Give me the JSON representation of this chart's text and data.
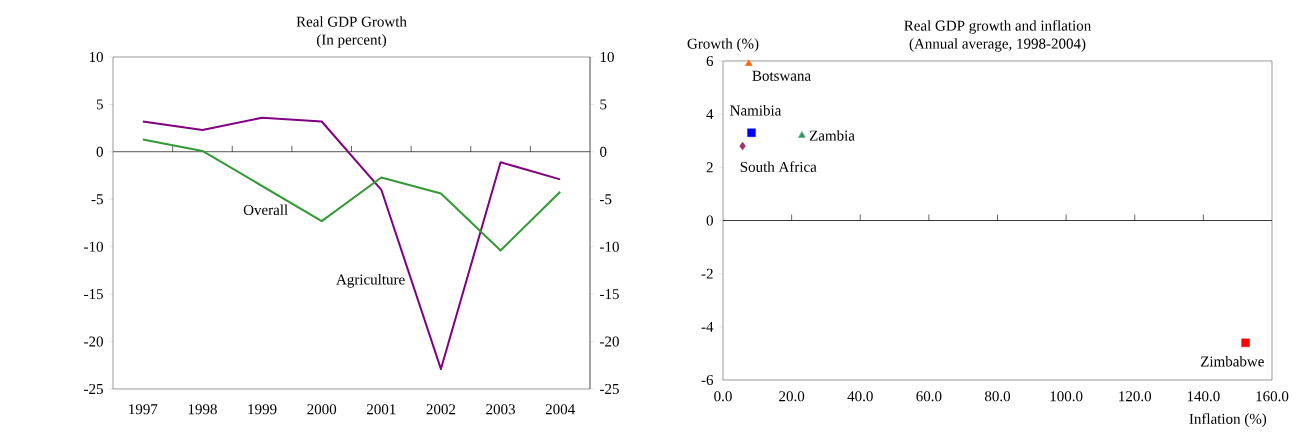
{
  "chart_data": [
    {
      "type": "line",
      "title": "Real GDP Growth",
      "subtitle": "(In percent)",
      "categories": [
        "1997",
        "1998",
        "1999",
        "2000",
        "2001",
        "2002",
        "2003",
        "2004"
      ],
      "series": [
        {
          "name": "Agriculture",
          "color": "#800080",
          "values": [
            3.2,
            2.3,
            3.6,
            3.2,
            -4.0,
            -22.9,
            -1.1,
            -2.9
          ]
        },
        {
          "name": "Overall",
          "color": "#339933",
          "values": [
            1.3,
            0.1,
            -3.6,
            -7.3,
            -2.7,
            -4.4,
            -10.4,
            -4.2
          ]
        }
      ],
      "ylim": [
        -25,
        10
      ],
      "yticks": [
        -25,
        -20,
        -15,
        -10,
        -5,
        0,
        5,
        10
      ],
      "ref_lines": [
        {
          "axis": "y",
          "value": 0
        }
      ],
      "y2lim": [
        -25,
        10
      ],
      "y2ticks": [
        -25,
        -20,
        -15,
        -10,
        -5,
        0,
        5,
        10
      ],
      "grid": false,
      "legend": false,
      "marker": "none",
      "line_style": "solid"
    },
    {
      "type": "scatter",
      "title": "Real GDP growth and inflation",
      "subtitle": "(Annual average, 1998-2004)",
      "xlabel": "Inflation (%)",
      "ylabel": "Growth (%)",
      "series": [
        {
          "name": "Botswana",
          "color": "#ff6600",
          "marker": "triangle",
          "x": [
            7.5
          ],
          "values": [
            5.9
          ]
        },
        {
          "name": "Namibia",
          "color": "#0000ff",
          "marker": "square",
          "x": [
            8.3
          ],
          "values": [
            3.3
          ]
        },
        {
          "name": "Zambia",
          "color": "#339966",
          "marker": "triangle",
          "x": [
            23.0
          ],
          "values": [
            3.2
          ]
        },
        {
          "name": "South Africa",
          "color": "#993366",
          "marker": "diamond",
          "x": [
            5.7
          ],
          "values": [
            2.8
          ]
        },
        {
          "name": "Zimbabwe",
          "color": "#ff0000",
          "marker": "square",
          "x": [
            152.3
          ],
          "values": [
            -4.6
          ]
        }
      ],
      "xlim": [
        0,
        160
      ],
      "xticks": [
        {
          "value": 0,
          "label": "0.0"
        },
        {
          "value": 20,
          "label": "20.0"
        },
        {
          "value": 40,
          "label": "40.0"
        },
        {
          "value": 60,
          "label": "60.0"
        },
        {
          "value": 80,
          "label": "80.0"
        },
        {
          "value": 100,
          "label": "100.0"
        },
        {
          "value": 120,
          "label": "120.0"
        },
        {
          "value": 140,
          "label": "140.0"
        },
        {
          "value": 160,
          "label": "160.0"
        }
      ],
      "ylim": [
        -6,
        6
      ],
      "yticks": [
        -6,
        -4,
        -2,
        0,
        2,
        4,
        6
      ],
      "ref_lines": [
        {
          "axis": "y",
          "value": 0
        }
      ],
      "grid": false,
      "legend": false
    }
  ]
}
